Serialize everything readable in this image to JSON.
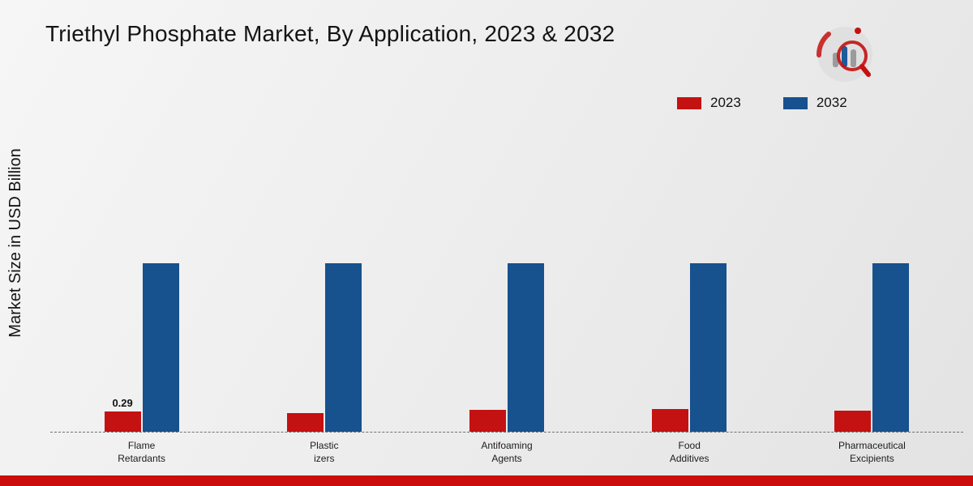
{
  "title": "Triethyl Phosphate Market, By Application, 2023 & 2032",
  "ylabel": "Market Size in USD Billion",
  "legend": [
    {
      "label": "2023",
      "color": "#c41111"
    },
    {
      "label": "2032",
      "color": "#17518e"
    }
  ],
  "colors": {
    "bar_2023": "#c41111",
    "bar_2032": "#17518e",
    "footer_strip": "#cc0d0d",
    "baseline": "#6f6f6f"
  },
  "chart_data": {
    "type": "bar",
    "categories": [
      "Flame Retardants",
      "Plasticizers",
      "Antifoaming Agents",
      "Food Additives",
      "Pharmaceutical Excipients"
    ],
    "category_labels": [
      [
        "Flame",
        "Retardants"
      ],
      [
        "Plastic",
        "izers"
      ],
      [
        "Antifoaming",
        "Agents"
      ],
      [
        "Food",
        "Additives"
      ],
      [
        "Pharmaceutical",
        "Excipients"
      ]
    ],
    "series": [
      {
        "name": "2023",
        "color": "#c41111",
        "values": [
          0.29,
          0.27,
          0.31,
          0.32,
          0.3
        ]
      },
      {
        "name": "2032",
        "color": "#17518e",
        "values": [
          2.42,
          2.42,
          2.42,
          2.42,
          2.42
        ]
      }
    ],
    "annotations": [
      {
        "series": "2023",
        "category_index": 0,
        "text": "0.29"
      }
    ],
    "xlabel": "",
    "ylim": [
      0,
      3
    ],
    "grid": false,
    "legend_position": "top-right"
  }
}
